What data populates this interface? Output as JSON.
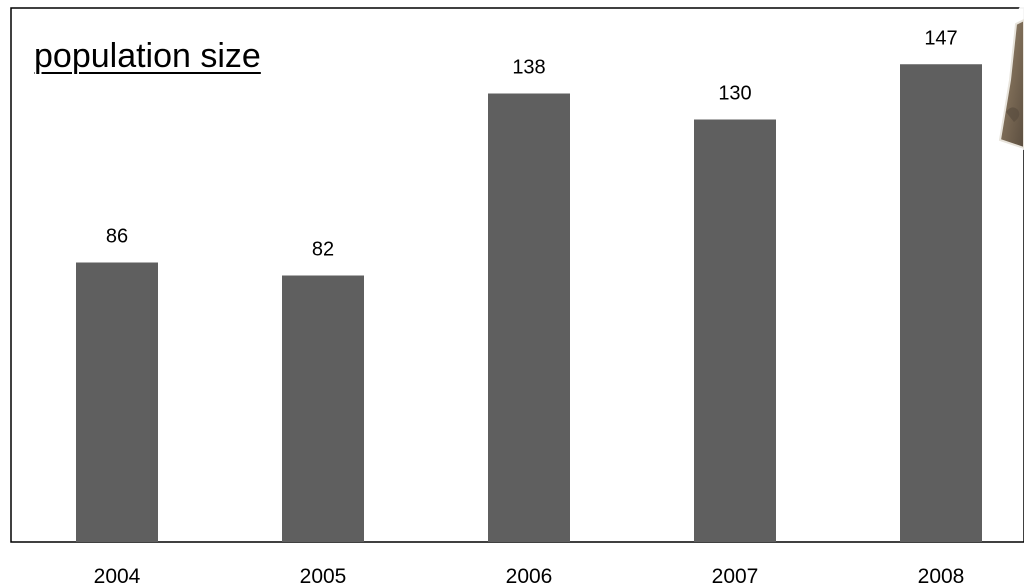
{
  "chart_data": {
    "type": "bar",
    "title": "population size",
    "categories": [
      "2004",
      "2005",
      "2006",
      "2007",
      "2008"
    ],
    "values": [
      86,
      82,
      138,
      130,
      147
    ],
    "xlabel": "",
    "ylabel": "",
    "ylim": [
      0,
      150
    ],
    "grid": false,
    "legend": "none",
    "data_labels": true,
    "colors": {
      "bar": "#5f5f5f",
      "axis": "#000000",
      "background": "#ffffff"
    }
  },
  "decor": {
    "photo_icon": "animal-photo-icon",
    "photo_colors": [
      "#7b6a55",
      "#9a8c79",
      "#5a4d3f"
    ]
  }
}
